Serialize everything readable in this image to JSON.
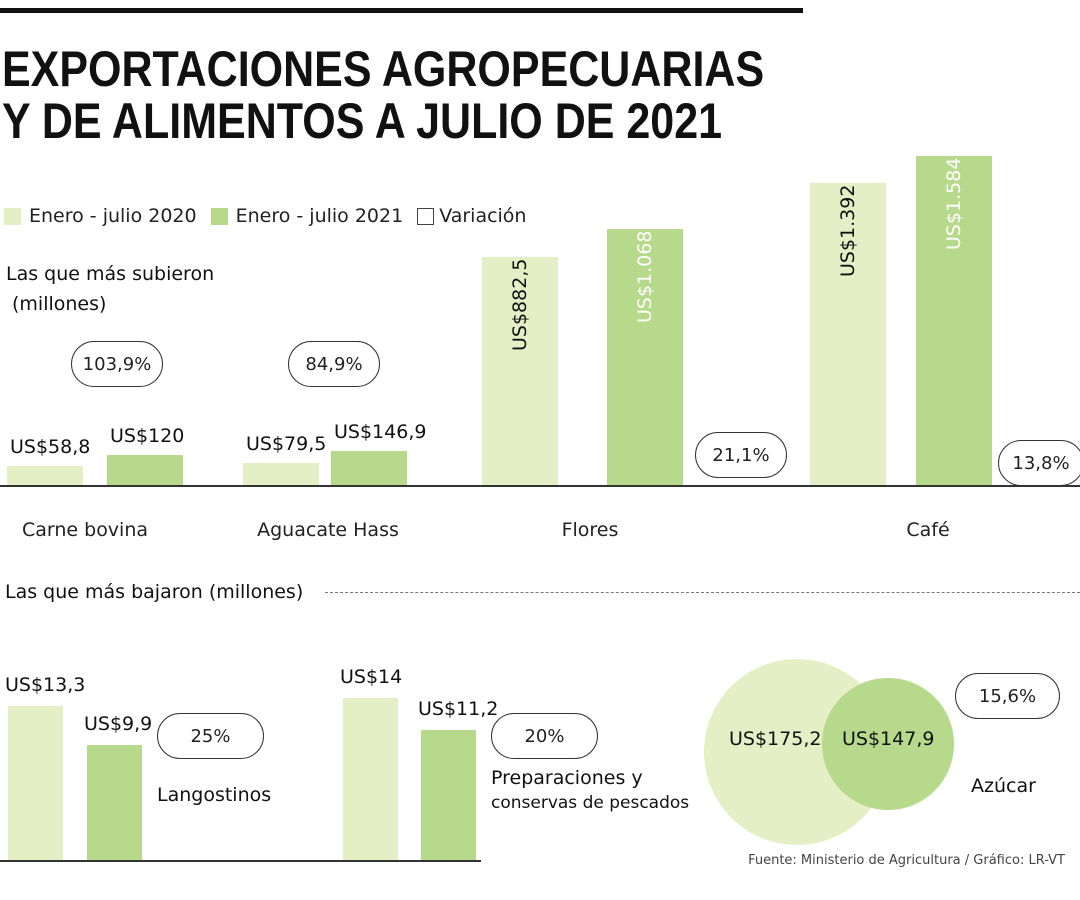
{
  "title": {
    "line1": "EXPORTACIONES AGROPECUARIAS",
    "line2": "Y DE ALIMENTOS A JULIO DE 2021"
  },
  "colors": {
    "y2020": "#e4efc6",
    "y2021": "#b6d98b"
  },
  "legend": [
    "Enero - julio 2020",
    "Enero - julio 2021",
    "Variación"
  ],
  "section_up": {
    "label_line1": "Las que más subieron",
    "label_line2": "(millones)"
  },
  "section_down": {
    "label": "Las que más bajaron  (millones)"
  },
  "source": "Fuente: Ministerio de Agricultura / Gráfico: LR-VT",
  "chart_data": [
    {
      "type": "bar",
      "title": "Las que más subieron (millones)",
      "categories": [
        "Carne bovina",
        "Aguacate Hass",
        "Flores",
        "Café"
      ],
      "series": [
        {
          "name": "Enero - julio 2020",
          "values": [
            58.8,
            79.5,
            882.5,
            1392
          ],
          "labels": [
            "US$58,8",
            "US$79,5",
            "US$882,5",
            "US$1.392"
          ]
        },
        {
          "name": "Enero - julio 2021",
          "values": [
            120,
            146.9,
            1068,
            1584
          ],
          "labels": [
            "US$120",
            "US$146,9",
            "US$1.068",
            "US$1.584"
          ]
        }
      ],
      "variation": [
        "103,9%",
        "84,9%",
        "21,1%",
        "13,8%"
      ],
      "unit": "millones US$"
    },
    {
      "type": "bar",
      "title": "Las que más bajaron (millones)",
      "categories": [
        "Langostinos",
        "Preparaciones y conservas de pescados",
        "Azúcar"
      ],
      "category_labels": [
        "Langostinos",
        "Preparaciones y",
        "conservas de pescados",
        "Azúcar"
      ],
      "series": [
        {
          "name": "Enero - julio 2020",
          "values": [
            13.3,
            14,
            175.2
          ],
          "labels": [
            "US$13,3",
            "US$14",
            "US$175,2"
          ]
        },
        {
          "name": "Enero - julio 2021",
          "values": [
            9.9,
            11.2,
            147.9
          ],
          "labels": [
            "US$9,9",
            "US$11,2",
            "US$147,9"
          ]
        }
      ],
      "variation": [
        "25%",
        "20%",
        "15,6%"
      ],
      "unit": "millones US$"
    }
  ]
}
